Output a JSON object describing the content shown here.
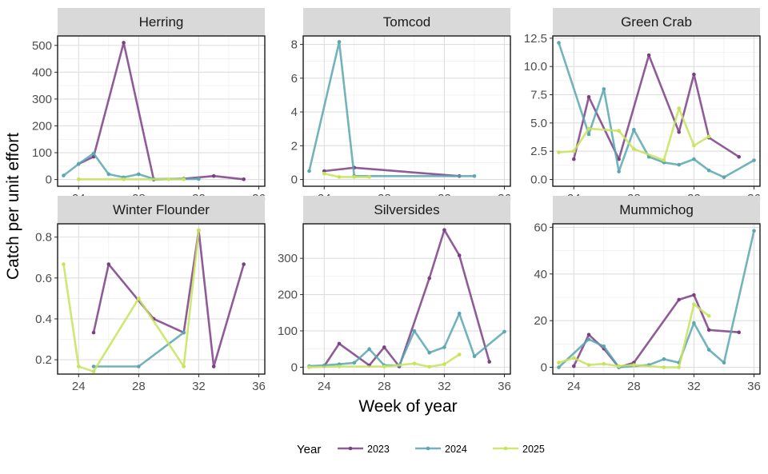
{
  "chart_data": {
    "type": "line",
    "xlabel": "Week of year",
    "ylabel": "Catch per unit effort",
    "legend": {
      "title": "Year",
      "position": "bottom",
      "entries": [
        {
          "name": "2023",
          "color": "#7b3f86"
        },
        {
          "name": "2024",
          "color": "#5ba6b0"
        },
        {
          "name": "2025",
          "color": "#c7e35a"
        }
      ]
    },
    "xlim": [
      22.6,
      36.4
    ],
    "xticks": [
      24,
      28,
      32,
      36
    ],
    "grid": true,
    "panels": [
      {
        "title": "Herring",
        "ylim": [
          -25,
          535
        ],
        "yticks": [
          0,
          100,
          200,
          300,
          400,
          500
        ],
        "series": [
          {
            "name": "2023",
            "points": [
              [
                24,
                58
              ],
              [
                25,
                85
              ],
              [
                27,
                510
              ],
              [
                29,
                0
              ],
              [
                31,
                3
              ],
              [
                33,
                13
              ],
              [
                35,
                1
              ]
            ]
          },
          {
            "name": "2024",
            "points": [
              [
                23,
                15
              ],
              [
                24,
                58
              ],
              [
                25,
                97
              ],
              [
                26,
                20
              ],
              [
                27,
                8
              ],
              [
                28,
                20
              ],
              [
                29,
                2
              ],
              [
                31,
                2
              ],
              [
                32,
                2
              ]
            ]
          },
          {
            "name": "2025",
            "points": [
              [
                24,
                1
              ],
              [
                27,
                1
              ],
              [
                30,
                1
              ],
              [
                31,
                1
              ]
            ]
          }
        ]
      },
      {
        "title": "Tomcod",
        "ylim": [
          -0.4,
          8.5
        ],
        "yticks": [
          0,
          2,
          4,
          6,
          8
        ],
        "series": [
          {
            "name": "2023",
            "points": [
              [
                24,
                0.5
              ],
              [
                26,
                0.7
              ],
              [
                33,
                0.2
              ]
            ]
          },
          {
            "name": "2024",
            "points": [
              [
                23,
                0.5
              ],
              [
                25,
                8.15
              ],
              [
                26,
                0.2
              ],
              [
                34,
                0.2
              ]
            ]
          },
          {
            "name": "2025",
            "points": [
              [
                24,
                0.35
              ],
              [
                25,
                0.15
              ],
              [
                26,
                0.15
              ],
              [
                27,
                0.15
              ]
            ]
          }
        ]
      },
      {
        "title": "Green Crab",
        "ylim": [
          -0.6,
          12.7
        ],
        "yticks": [
          0.0,
          2.5,
          5.0,
          7.5,
          10.0,
          12.5
        ],
        "series": [
          {
            "name": "2023",
            "points": [
              [
                24,
                1.8
              ],
              [
                25,
                7.3
              ],
              [
                27,
                1.8
              ],
              [
                29,
                11.0
              ],
              [
                31,
                4.2
              ],
              [
                32,
                9.3
              ],
              [
                33,
                3.7
              ],
              [
                35,
                2.0
              ]
            ]
          },
          {
            "name": "2024",
            "points": [
              [
                23,
                12.1
              ],
              [
                25,
                4.0
              ],
              [
                26,
                8.0
              ],
              [
                27,
                0.7
              ],
              [
                28,
                4.4
              ],
              [
                29,
                2.0
              ],
              [
                30,
                1.5
              ],
              [
                31,
                1.3
              ],
              [
                32,
                1.8
              ],
              [
                33,
                0.8
              ],
              [
                34,
                0.2
              ],
              [
                36,
                1.7
              ]
            ]
          },
          {
            "name": "2025",
            "points": [
              [
                23,
                2.4
              ],
              [
                24,
                2.5
              ],
              [
                25,
                4.5
              ],
              [
                27,
                4.3
              ],
              [
                28,
                2.7
              ],
              [
                30,
                1.7
              ],
              [
                31,
                6.3
              ],
              [
                32,
                3.0
              ],
              [
                33,
                3.8
              ]
            ]
          }
        ]
      },
      {
        "title": "Winter Flounder",
        "ylim": [
          0.13,
          0.865
        ],
        "yticks": [
          0.2,
          0.4,
          0.6,
          0.8
        ],
        "series": [
          {
            "name": "2023",
            "points": [
              [
                25,
                0.333
              ],
              [
                26,
                0.667
              ],
              [
                29,
                0.4
              ],
              [
                31,
                0.333
              ],
              [
                32,
                0.833
              ],
              [
                33,
                0.167
              ],
              [
                35,
                0.667
              ]
            ]
          },
          {
            "name": "2024",
            "points": [
              [
                25,
                0.167
              ],
              [
                28,
                0.167
              ],
              [
                31,
                0.333
              ]
            ]
          },
          {
            "name": "2025",
            "points": [
              [
                23,
                0.667
              ],
              [
                24,
                0.167
              ],
              [
                25,
                0.143
              ],
              [
                28,
                0.5
              ],
              [
                31,
                0.167
              ],
              [
                32,
                0.833
              ]
            ]
          }
        ]
      },
      {
        "title": "Silversides",
        "ylim": [
          -19,
          395
        ],
        "yticks": [
          0,
          100,
          200,
          300
        ],
        "series": [
          {
            "name": "2023",
            "points": [
              [
                24,
                3
              ],
              [
                25,
                65
              ],
              [
                27,
                5
              ],
              [
                28,
                55
              ],
              [
                29,
                2
              ],
              [
                31,
                245
              ],
              [
                32,
                378
              ],
              [
                33,
                308
              ],
              [
                35,
                15
              ]
            ]
          },
          {
            "name": "2024",
            "points": [
              [
                23,
                3
              ],
              [
                24,
                5
              ],
              [
                25,
                8
              ],
              [
                26,
                12
              ],
              [
                27,
                50
              ],
              [
                28,
                5
              ],
              [
                29,
                5
              ],
              [
                30,
                100
              ],
              [
                31,
                40
              ],
              [
                32,
                55
              ],
              [
                33,
                148
              ],
              [
                34,
                30
              ],
              [
                36,
                98
              ]
            ]
          },
          {
            "name": "2025",
            "points": [
              [
                23,
                0
              ],
              [
                25,
                2
              ],
              [
                28,
                2
              ],
              [
                30,
                10
              ],
              [
                31,
                1
              ],
              [
                32,
                8
              ],
              [
                33,
                35
              ]
            ]
          }
        ]
      },
      {
        "title": "Mummichog",
        "ylim": [
          -2.9,
          61.5
        ],
        "yticks": [
          0,
          20,
          40,
          60
        ],
        "series": [
          {
            "name": "2023",
            "points": [
              [
                24,
                0.5
              ],
              [
                25,
                14
              ],
              [
                26,
                8
              ],
              [
                27,
                0
              ],
              [
                28,
                2
              ],
              [
                31,
                29
              ],
              [
                32,
                31
              ],
              [
                33,
                16
              ],
              [
                35,
                15
              ]
            ]
          },
          {
            "name": "2024",
            "points": [
              [
                23,
                0
              ],
              [
                25,
                12
              ],
              [
                26,
                9
              ],
              [
                27,
                0
              ],
              [
                29,
                1
              ],
              [
                30,
                3.5
              ],
              [
                31,
                2
              ],
              [
                32,
                19
              ],
              [
                33,
                7.5
              ],
              [
                34,
                2
              ],
              [
                36,
                58.5
              ]
            ]
          },
          {
            "name": "2025",
            "points": [
              [
                23,
                2
              ],
              [
                24,
                4
              ],
              [
                25,
                1
              ],
              [
                26,
                1.5
              ],
              [
                27,
                0.5
              ],
              [
                28,
                1
              ],
              [
                30,
                0
              ],
              [
                31,
                0
              ],
              [
                32,
                27
              ],
              [
                33,
                22
              ]
            ]
          }
        ]
      }
    ]
  }
}
